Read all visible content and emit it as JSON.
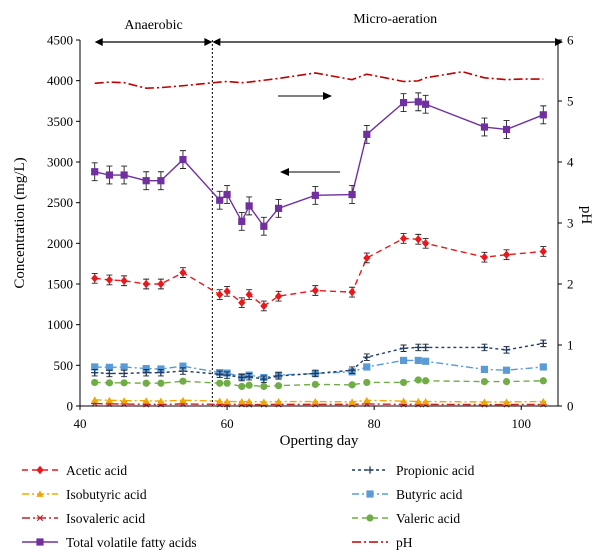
{
  "chart_data": {
    "type": "line",
    "xlabel": "Operting day",
    "ylabel": "Concentration (mg/L)",
    "y2label": "pH",
    "xlim": [
      40,
      105
    ],
    "ylim": [
      0,
      4500
    ],
    "y2lim": [
      0,
      6
    ],
    "xticks": [
      "40",
      "60",
      "80",
      "100"
    ],
    "yticks": [
      "0",
      "500",
      "1000",
      "1500",
      "2000",
      "2500",
      "3000",
      "3500",
      "4000",
      "4500"
    ],
    "y2ticks": [
      "0",
      "1",
      "2",
      "3",
      "4",
      "5",
      "6"
    ],
    "phases": [
      {
        "label": "Anaerobic",
        "start": 42,
        "end": 58
      },
      {
        "label": "Micro-aeration",
        "start": 58,
        "end": 105
      }
    ],
    "phase_divider_x": 58,
    "legend_position": "bottom",
    "series": [
      {
        "name": "Acetic acid",
        "color": "#e8191c",
        "marker": "diamond",
        "dash": "6,4",
        "axis": "left",
        "x": [
          42,
          44,
          46,
          49,
          51,
          54,
          59,
          60,
          62,
          63,
          65,
          67,
          72,
          77,
          79,
          84,
          86,
          87,
          95,
          98,
          103
        ],
        "y": [
          1570,
          1550,
          1540,
          1500,
          1500,
          1640,
          1370,
          1410,
          1270,
          1370,
          1230,
          1350,
          1420,
          1400,
          1820,
          2060,
          2050,
          2000,
          1830,
          1860,
          1900
        ],
        "err": [
          60,
          60,
          60,
          60,
          60,
          60,
          60,
          60,
          60,
          60,
          60,
          60,
          60,
          60,
          60,
          60,
          60,
          60,
          60,
          60,
          60
        ]
      },
      {
        "name": "Propionic acid",
        "color": "#1f3a66",
        "marker": "plus",
        "dash": "3,3",
        "axis": "left",
        "x": [
          42,
          44,
          46,
          49,
          51,
          54,
          59,
          60,
          62,
          63,
          65,
          67,
          72,
          77,
          79,
          84,
          86,
          87,
          95,
          98,
          103
        ],
        "y": [
          410,
          400,
          400,
          410,
          410,
          430,
          390,
          380,
          350,
          360,
          330,
          370,
          400,
          440,
          600,
          710,
          720,
          720,
          720,
          690,
          770
        ],
        "err": [
          40,
          40,
          40,
          40,
          40,
          40,
          40,
          40,
          40,
          40,
          40,
          40,
          40,
          40,
          40,
          40,
          40,
          40,
          40,
          40,
          40
        ]
      },
      {
        "name": "Isobutyric acid",
        "color": "#f0a800",
        "marker": "triangle",
        "dash": "7,3,2,3",
        "axis": "left",
        "x": [
          42,
          44,
          46,
          49,
          51,
          54,
          59,
          60,
          62,
          63,
          65,
          67,
          72,
          77,
          79,
          84,
          86,
          87,
          95,
          98,
          103
        ],
        "y": [
          75,
          70,
          65,
          65,
          60,
          70,
          60,
          55,
          55,
          55,
          50,
          55,
          55,
          50,
          70,
          60,
          55,
          55,
          50,
          50,
          55
        ],
        "err": [
          0,
          0,
          0,
          0,
          0,
          0,
          0,
          0,
          0,
          0,
          0,
          0,
          0,
          0,
          0,
          0,
          0,
          0,
          0,
          0,
          0
        ]
      },
      {
        "name": "Butyric acid",
        "color": "#5b9bd5",
        "marker": "square",
        "dash": "7,3,2,3",
        "axis": "left",
        "x": [
          42,
          44,
          46,
          49,
          51,
          54,
          59,
          60,
          62,
          63,
          65,
          67,
          72,
          77,
          79,
          84,
          86,
          87,
          95,
          98,
          103
        ],
        "y": [
          480,
          475,
          480,
          460,
          455,
          490,
          410,
          405,
          360,
          380,
          350,
          380,
          400,
          420,
          480,
          560,
          560,
          550,
          450,
          440,
          480
        ],
        "err": [
          30,
          30,
          30,
          30,
          30,
          30,
          30,
          30,
          30,
          30,
          30,
          30,
          30,
          30,
          30,
          30,
          30,
          30,
          30,
          30,
          30
        ]
      },
      {
        "name": "Isovaleric acid",
        "color": "#c0222a",
        "marker": "asterisk",
        "dash": "8,3,2,3",
        "axis": "left",
        "x": [
          42,
          44,
          46,
          49,
          51,
          54,
          59,
          60,
          62,
          63,
          65,
          67,
          72,
          77,
          79,
          84,
          86,
          87,
          95,
          98,
          103
        ],
        "y": [
          30,
          25,
          25,
          20,
          20,
          25,
          20,
          20,
          20,
          18,
          18,
          20,
          20,
          20,
          25,
          20,
          20,
          20,
          18,
          18,
          20
        ],
        "err": [
          0,
          0,
          0,
          0,
          0,
          0,
          0,
          0,
          0,
          0,
          0,
          0,
          0,
          0,
          0,
          0,
          0,
          0,
          0,
          0,
          0
        ]
      },
      {
        "name": "Valeric acid",
        "color": "#70ad47",
        "marker": "circle",
        "dash": "6,4",
        "axis": "left",
        "x": [
          42,
          44,
          46,
          49,
          51,
          54,
          59,
          60,
          62,
          63,
          65,
          67,
          72,
          77,
          79,
          84,
          86,
          87,
          95,
          98,
          103
        ],
        "y": [
          290,
          285,
          285,
          280,
          280,
          305,
          280,
          280,
          240,
          255,
          240,
          250,
          265,
          260,
          290,
          290,
          320,
          310,
          300,
          300,
          310
        ],
        "err": [
          0,
          0,
          0,
          0,
          0,
          0,
          0,
          0,
          0,
          0,
          0,
          0,
          0,
          0,
          0,
          0,
          0,
          0,
          0,
          0,
          0
        ]
      },
      {
        "name": "Total volatile fatty acids",
        "color": "#7030a0",
        "marker": "square",
        "dash": "",
        "axis": "left",
        "x": [
          42,
          44,
          46,
          49,
          51,
          54,
          59,
          60,
          62,
          63,
          65,
          67,
          72,
          77,
          79,
          84,
          86,
          87,
          95,
          98,
          103
        ],
        "y": [
          2880,
          2840,
          2840,
          2770,
          2770,
          3030,
          2530,
          2600,
          2270,
          2460,
          2210,
          2430,
          2590,
          2600,
          3340,
          3730,
          3740,
          3710,
          3430,
          3400,
          3580
        ],
        "err": [
          110,
          110,
          110,
          110,
          110,
          110,
          110,
          110,
          110,
          110,
          110,
          110,
          110,
          110,
          110,
          110,
          110,
          110,
          110,
          110,
          110
        ]
      },
      {
        "name": "pH",
        "color": "#c00000",
        "marker": "none",
        "dash": "9,3,2,3",
        "axis": "right",
        "x": [
          42,
          44,
          46,
          49,
          51,
          54,
          59,
          60,
          62,
          63,
          65,
          67,
          72,
          77,
          79,
          84,
          86,
          87,
          92,
          95,
          98,
          100,
          103
        ],
        "y": [
          5.29,
          5.31,
          5.3,
          5.21,
          5.22,
          5.25,
          5.31,
          5.32,
          5.3,
          5.31,
          5.34,
          5.37,
          5.46,
          5.35,
          5.44,
          5.32,
          5.33,
          5.38,
          5.48,
          5.38,
          5.35,
          5.36,
          5.36
        ],
        "err": [
          0,
          0,
          0,
          0,
          0,
          0,
          0,
          0,
          0,
          0,
          0,
          0,
          0,
          0,
          0,
          0,
          0,
          0,
          0,
          0,
          0,
          0,
          0
        ]
      }
    ]
  }
}
